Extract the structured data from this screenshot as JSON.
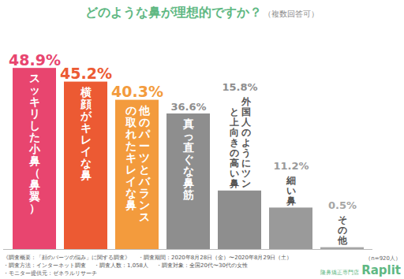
{
  "chart_data": {
    "type": "bar",
    "title": "どのような鼻が理想的ですか？",
    "subtitle": "（複数回答可）",
    "categories": [
      "スッキリした小鼻（鼻翼）",
      "横顔がキレイな鼻",
      "他のパーツとバランスの取れたキレイな鼻",
      "真っ直ぐな鼻筋",
      "外国人のようにツンと上向きの高い鼻",
      "細い鼻",
      "その他"
    ],
    "values": [
      48.9,
      45.2,
      40.3,
      36.6,
      15.8,
      11.2,
      0.5
    ],
    "value_labels": [
      "48.9%",
      "45.2%",
      "40.3%",
      "36.6%",
      "15.8%",
      "11.2%",
      "0.5%"
    ],
    "colors": [
      "#e8456f",
      "#ec5a33",
      "#f39b3d",
      "#8e8e8e",
      "#8e8e8e",
      "#9a9a9a",
      "#a6a6a6"
    ],
    "ylim": [
      0,
      60
    ],
    "data_labels": true,
    "tick_labels": false,
    "grid": false,
    "note": "（n=920人）",
    "footnotes": [
      "《調査概要：「顔のパーツの悩み」に関する調査》",
      "・調査期間：2020年8月28日（金）〜2020年8月29日（土）",
      "・調査方法：インターネット調査",
      "・調査人数：1,058人",
      "・調査対象：全国20代〜30代の女性",
      "・モニター提供元：ゼネラルリサーチ"
    ],
    "brand_tagline": "隆鼻矯正専門店",
    "brand": "Raplit"
  }
}
